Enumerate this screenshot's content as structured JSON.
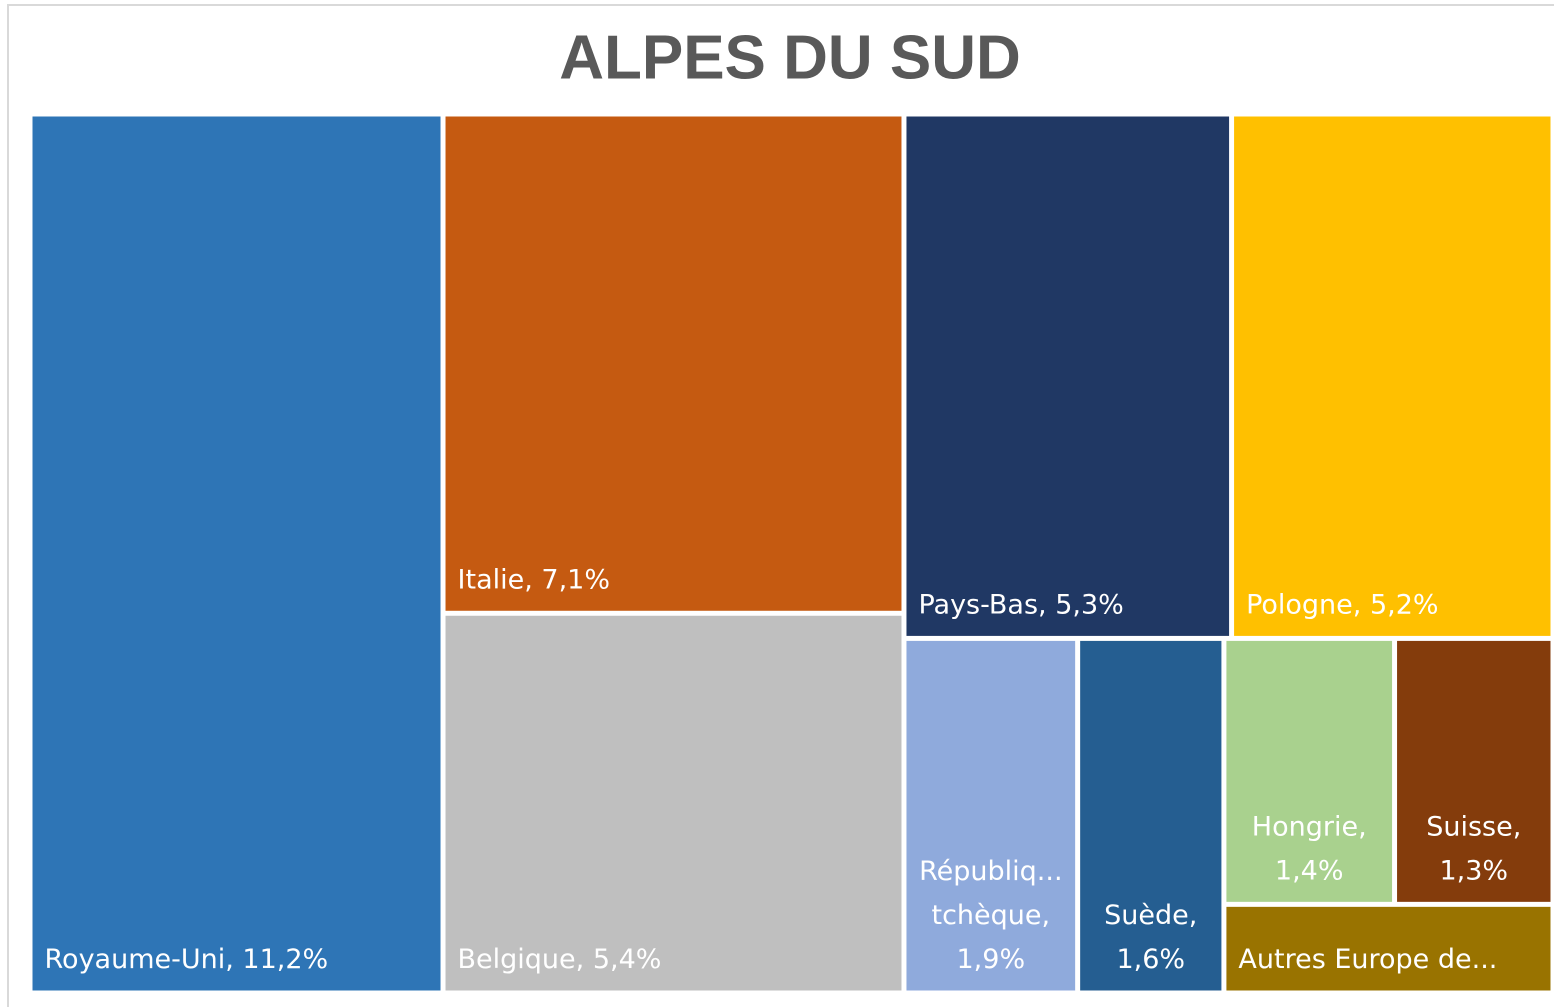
{
  "chart_data": {
    "type": "treemap",
    "title": "ALPES DU SUD",
    "labels": [
      [
        "Royaume-Uni, 11,2%"
      ],
      [
        "Italie, 7,1%"
      ],
      [
        "Belgique, 5,4%"
      ],
      [
        "Pays-Bas, 5,3%"
      ],
      [
        "Pologne, 5,2%"
      ],
      [
        "Républiq...",
        "tchèque,",
        "1,9%"
      ],
      [
        "Suède,",
        "1,6%"
      ],
      [
        "Hongrie,",
        "1,4%"
      ],
      [
        "Suisse,",
        "1,3%"
      ],
      [
        "Autres Europe de..."
      ]
    ],
    "values": [
      11.2,
      7.1,
      5.4,
      5.3,
      5.2,
      1.9,
      1.6,
      1.4,
      1.3,
      0.9
    ],
    "colors": [
      "#2e75b6",
      "#c55a11",
      "#bfbfbf",
      "#203864",
      "#ffc000",
      "#8faadc",
      "#255e91",
      "#a9d18e",
      "#843c0c",
      "#997300"
    ]
  }
}
